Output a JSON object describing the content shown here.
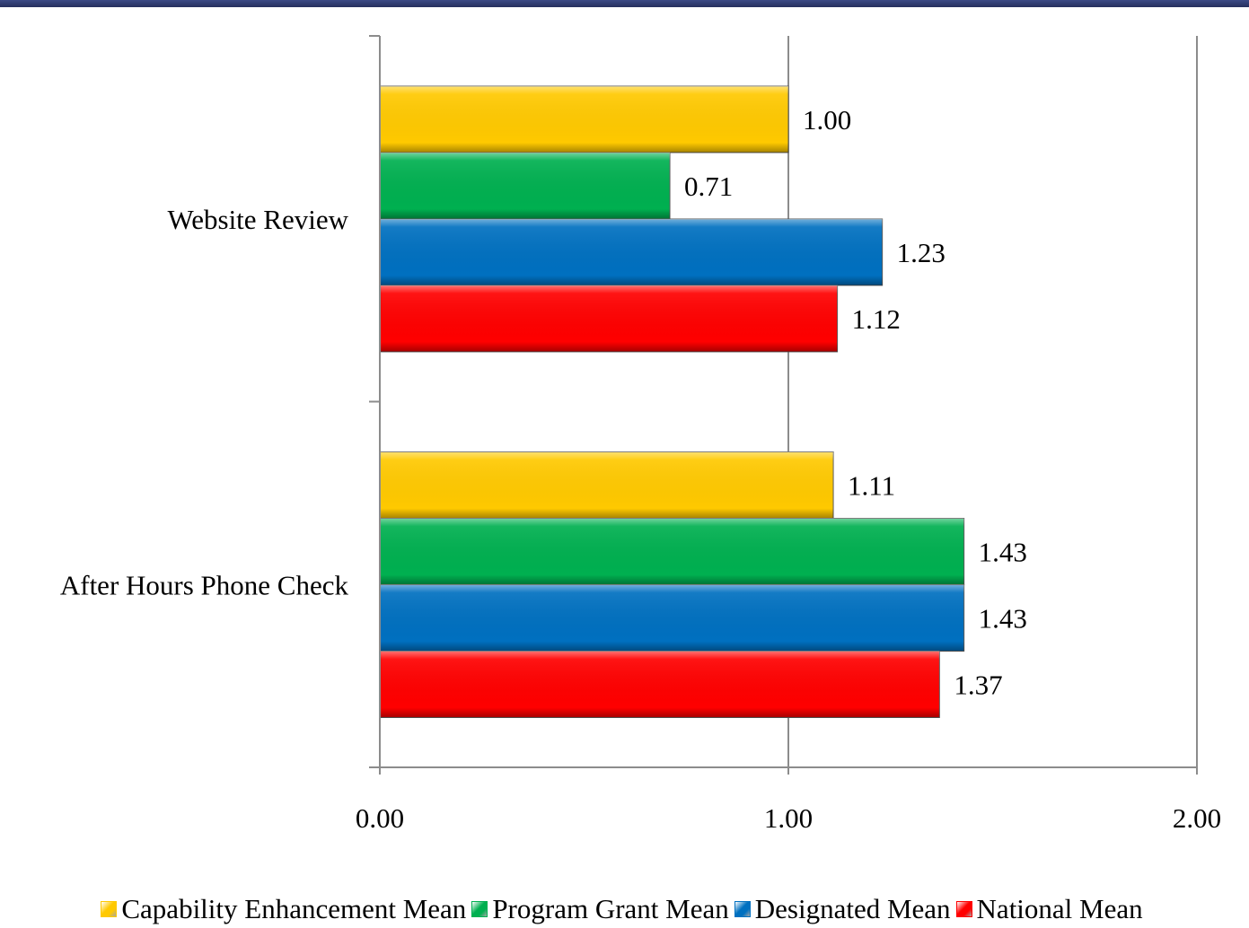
{
  "chart_data": {
    "type": "bar",
    "orientation": "horizontal",
    "categories": [
      "Website Review",
      "After Hours Phone Check"
    ],
    "series": [
      {
        "name": "Capability Enhancement Mean",
        "color": "#FFC900",
        "values": [
          1.0,
          1.11
        ],
        "labels": [
          "1.00",
          "1.11"
        ]
      },
      {
        "name": "Program Grant Mean",
        "color": "#00B050",
        "values": [
          0.71,
          1.43
        ],
        "labels": [
          "0.71",
          "1.43"
        ]
      },
      {
        "name": "Designated Mean",
        "color": "#0070C0",
        "values": [
          1.23,
          1.43
        ],
        "labels": [
          "1.23",
          "1.43"
        ]
      },
      {
        "name": "National Mean",
        "color": "#FF0000",
        "values": [
          1.12,
          1.37
        ],
        "labels": [
          "1.12",
          "1.37"
        ]
      }
    ],
    "xlim": [
      0,
      2
    ],
    "xticks": [
      "0.00",
      "1.00",
      "2.00"
    ],
    "grid": "vertical-major",
    "legend_position": "bottom",
    "xlabel": "",
    "ylabel": ""
  }
}
